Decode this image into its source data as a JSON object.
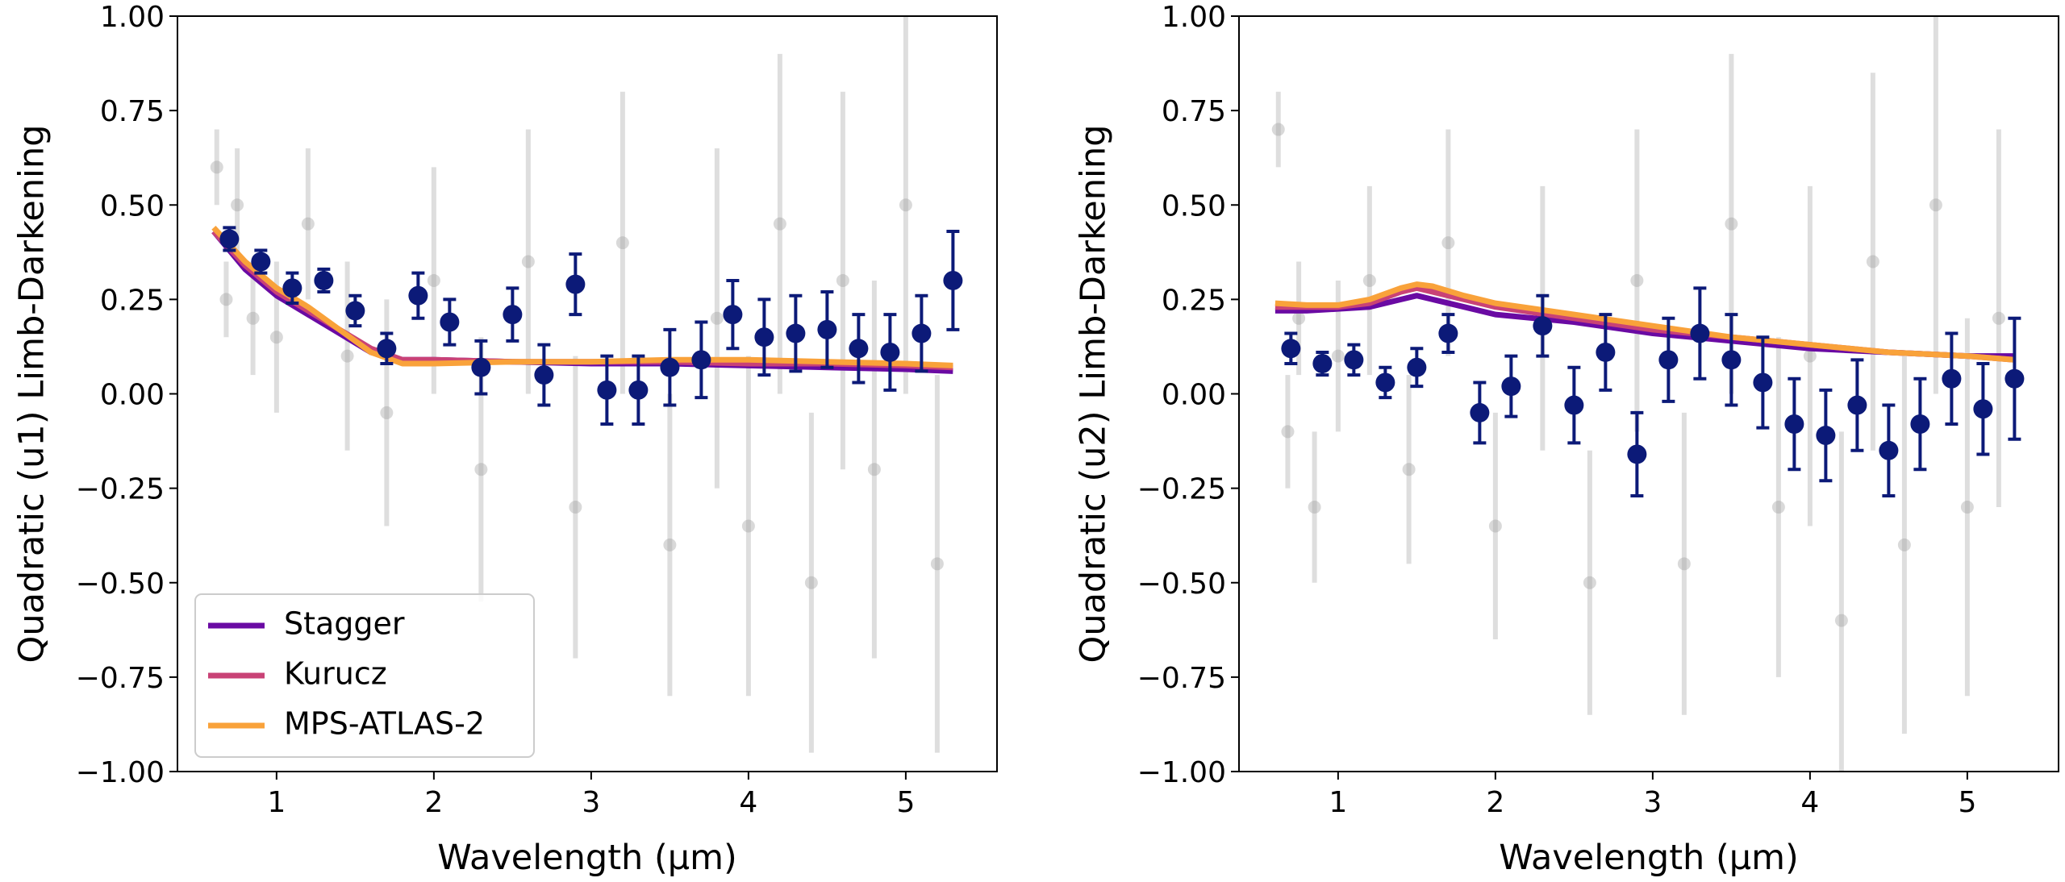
{
  "chart_data": [
    {
      "type": "scatter",
      "xlabel": "Wavelength (μm)",
      "ylabel": "Quadratic (u1) Limb-Darkening",
      "xlim": [
        0.37,
        5.58
      ],
      "ylim": [
        -1,
        1
      ],
      "xticks": [
        1,
        2,
        3,
        4,
        5
      ],
      "yticks": [
        {
          "value": -1,
          "label": "−1.00"
        },
        {
          "value": -0.75,
          "label": "−0.75"
        },
        {
          "value": -0.5,
          "label": "−0.50"
        },
        {
          "value": -0.25,
          "label": "−0.25"
        },
        {
          "value": 0,
          "label": "0.00"
        },
        {
          "value": 0.25,
          "label": "0.25"
        },
        {
          "value": 0.5,
          "label": "0.50"
        },
        {
          "value": 0.75,
          "label": "0.75"
        },
        {
          "value": 1,
          "label": "1.00"
        }
      ],
      "legend": "lower left",
      "series": [
        {
          "color": "#a0a0a0",
          "x": [
            0.62,
            0.68,
            0.75,
            0.85,
            1.0,
            1.2,
            1.45,
            1.7,
            2.0,
            2.3,
            2.6,
            2.9,
            3.2,
            3.5,
            3.8,
            4.0,
            4.2,
            4.4,
            4.6,
            4.8,
            5.0,
            5.2
          ],
          "values": [
            0.6,
            0.25,
            0.5,
            0.2,
            0.15,
            0.45,
            0.1,
            -0.05,
            0.3,
            -0.2,
            0.35,
            -0.3,
            0.4,
            -0.4,
            0.2,
            -0.35,
            0.45,
            -0.5,
            0.3,
            -0.2,
            0.5,
            -0.45
          ],
          "errors": [
            0.1,
            0.1,
            0.15,
            0.15,
            0.2,
            0.2,
            0.25,
            0.3,
            0.3,
            0.35,
            0.35,
            0.4,
            0.4,
            0.4,
            0.45,
            0.45,
            0.45,
            0.45,
            0.5,
            0.5,
            0.5,
            0.5
          ]
        },
        {
          "name": "Stagger",
          "color": "#6a0aa3",
          "x": [
            0.6,
            0.8,
            1.0,
            1.2,
            1.4,
            1.6,
            1.8,
            2.0,
            2.5,
            3.0,
            3.5,
            4.0,
            4.5,
            5.0,
            5.3
          ],
          "values": [
            0.43,
            0.33,
            0.26,
            0.21,
            0.16,
            0.11,
            0.09,
            0.09,
            0.085,
            0.08,
            0.08,
            0.075,
            0.07,
            0.065,
            0.06
          ]
        },
        {
          "name": "Kurucz",
          "color": "#c94276",
          "x": [
            0.6,
            0.8,
            1.0,
            1.2,
            1.4,
            1.6,
            1.8,
            2.0,
            2.5,
            3.0,
            3.5,
            4.0,
            4.5,
            5.0,
            5.3
          ],
          "values": [
            0.43,
            0.34,
            0.27,
            0.22,
            0.17,
            0.12,
            0.09,
            0.09,
            0.085,
            0.085,
            0.085,
            0.08,
            0.08,
            0.075,
            0.07
          ]
        },
        {
          "name": "MPS-ATLAS-2",
          "color": "#f9a23a",
          "x": [
            0.6,
            0.8,
            1.0,
            1.2,
            1.4,
            1.6,
            1.8,
            2.0,
            2.5,
            3.0,
            3.5,
            4.0,
            4.5,
            5.0,
            5.3
          ],
          "values": [
            0.44,
            0.35,
            0.28,
            0.23,
            0.17,
            0.11,
            0.08,
            0.08,
            0.085,
            0.085,
            0.09,
            0.09,
            0.085,
            0.08,
            0.075
          ]
        },
        {
          "color": "#0c1a78",
          "x": [
            0.7,
            0.9,
            1.1,
            1.3,
            1.5,
            1.7,
            1.9,
            2.1,
            2.3,
            2.5,
            2.7,
            2.9,
            3.1,
            3.3,
            3.5,
            3.7,
            3.9,
            4.1,
            4.3,
            4.5,
            4.7,
            4.9,
            5.1,
            5.3
          ],
          "values": [
            0.41,
            0.35,
            0.28,
            0.3,
            0.22,
            0.12,
            0.26,
            0.19,
            0.07,
            0.21,
            0.05,
            0.29,
            0.01,
            0.01,
            0.07,
            0.09,
            0.21,
            0.15,
            0.16,
            0.17,
            0.12,
            0.11,
            0.16,
            0.3
          ],
          "errors": [
            0.03,
            0.03,
            0.04,
            0.03,
            0.04,
            0.04,
            0.06,
            0.06,
            0.07,
            0.07,
            0.08,
            0.08,
            0.09,
            0.09,
            0.1,
            0.1,
            0.09,
            0.1,
            0.1,
            0.1,
            0.09,
            0.1,
            0.1,
            0.13
          ]
        }
      ]
    },
    {
      "type": "scatter",
      "xlabel": "Wavelength (μm)",
      "ylabel": "Quadratic (u2) Limb-Darkening",
      "xlim": [
        0.37,
        5.58
      ],
      "ylim": [
        -1,
        1
      ],
      "xticks": [
        1,
        2,
        3,
        4,
        5
      ],
      "yticks": [
        {
          "value": -1,
          "label": "−1.00"
        },
        {
          "value": -0.75,
          "label": "−0.75"
        },
        {
          "value": -0.5,
          "label": "−0.50"
        },
        {
          "value": -0.25,
          "label": "−0.25"
        },
        {
          "value": 0,
          "label": "0.00"
        },
        {
          "value": 0.25,
          "label": "0.25"
        },
        {
          "value": 0.5,
          "label": "0.50"
        },
        {
          "value": 0.75,
          "label": "0.75"
        },
        {
          "value": 1,
          "label": "1.00"
        }
      ],
      "series": [
        {
          "color": "#a0a0a0",
          "x": [
            0.62,
            0.68,
            0.75,
            0.85,
            1.0,
            1.2,
            1.45,
            1.7,
            2.0,
            2.3,
            2.6,
            2.9,
            3.2,
            3.5,
            3.8,
            4.0,
            4.2,
            4.4,
            4.6,
            4.8,
            5.0,
            5.2
          ],
          "values": [
            0.7,
            -0.1,
            0.2,
            -0.3,
            0.1,
            0.3,
            -0.2,
            0.4,
            -0.35,
            0.2,
            -0.5,
            0.3,
            -0.45,
            0.45,
            -0.3,
            0.1,
            -0.6,
            0.35,
            -0.4,
            0.5,
            -0.3,
            0.2
          ],
          "errors": [
            0.1,
            0.15,
            0.15,
            0.2,
            0.2,
            0.25,
            0.25,
            0.3,
            0.3,
            0.35,
            0.35,
            0.4,
            0.4,
            0.45,
            0.45,
            0.45,
            0.5,
            0.5,
            0.5,
            0.5,
            0.5,
            0.5
          ]
        },
        {
          "name": "Stagger",
          "color": "#6a0aa3",
          "x": [
            0.6,
            0.8,
            1.0,
            1.2,
            1.4,
            1.5,
            1.6,
            1.8,
            2.0,
            2.5,
            3.0,
            3.5,
            4.0,
            4.5,
            5.0,
            5.3
          ],
          "values": [
            0.22,
            0.22,
            0.225,
            0.23,
            0.25,
            0.26,
            0.25,
            0.23,
            0.21,
            0.19,
            0.16,
            0.14,
            0.12,
            0.11,
            0.1,
            0.1
          ]
        },
        {
          "name": "Kurucz",
          "color": "#c94276",
          "x": [
            0.6,
            0.8,
            1.0,
            1.2,
            1.4,
            1.5,
            1.6,
            1.8,
            2.0,
            2.5,
            3.0,
            3.5,
            4.0,
            4.5,
            5.0,
            5.3
          ],
          "values": [
            0.23,
            0.23,
            0.23,
            0.24,
            0.27,
            0.28,
            0.27,
            0.25,
            0.23,
            0.2,
            0.17,
            0.15,
            0.13,
            0.11,
            0.1,
            0.09
          ]
        },
        {
          "name": "MPS-ATLAS-2",
          "color": "#f9a23a",
          "x": [
            0.6,
            0.8,
            1.0,
            1.2,
            1.4,
            1.5,
            1.6,
            1.8,
            2.0,
            2.5,
            3.0,
            3.5,
            4.0,
            4.5,
            5.0,
            5.3
          ],
          "values": [
            0.24,
            0.235,
            0.235,
            0.25,
            0.28,
            0.29,
            0.285,
            0.26,
            0.24,
            0.21,
            0.18,
            0.15,
            0.13,
            0.11,
            0.1,
            0.09
          ]
        },
        {
          "color": "#0c1a78",
          "x": [
            0.7,
            0.9,
            1.1,
            1.3,
            1.5,
            1.7,
            1.9,
            2.1,
            2.3,
            2.5,
            2.7,
            2.9,
            3.1,
            3.3,
            3.5,
            3.7,
            3.9,
            4.1,
            4.3,
            4.5,
            4.7,
            4.9,
            5.1,
            5.3
          ],
          "values": [
            0.12,
            0.08,
            0.09,
            0.03,
            0.07,
            0.16,
            -0.05,
            0.02,
            0.18,
            -0.03,
            0.11,
            -0.16,
            0.09,
            0.16,
            0.09,
            0.03,
            -0.08,
            -0.11,
            -0.03,
            -0.15,
            -0.08,
            0.04,
            -0.04,
            0.04
          ],
          "errors": [
            0.04,
            0.03,
            0.04,
            0.04,
            0.05,
            0.05,
            0.08,
            0.08,
            0.08,
            0.1,
            0.1,
            0.11,
            0.11,
            0.12,
            0.12,
            0.12,
            0.12,
            0.12,
            0.12,
            0.12,
            0.12,
            0.12,
            0.12,
            0.16
          ]
        }
      ]
    }
  ]
}
